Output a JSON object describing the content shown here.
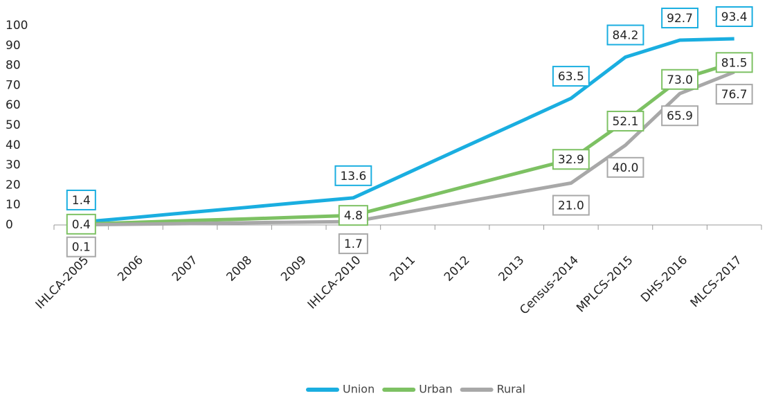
{
  "chart_data": {
    "type": "line",
    "categories": [
      "IHLCA-2005",
      "2006",
      "2007",
      "2008",
      "2009",
      "IHLCA-2010",
      "2011",
      "2012",
      "2013",
      "Census-2014",
      "MPLCS-2015",
      "DHS-2016",
      "MLCS-2017"
    ],
    "series": [
      {
        "name": "Union",
        "color": "#1aaee0",
        "values": [
          1.4,
          3.8,
          6.3,
          8.7,
          11.2,
          13.6,
          26.1,
          38.6,
          51.0,
          63.5,
          84.2,
          92.7,
          93.4
        ],
        "value_labels": [
          "1.4",
          null,
          null,
          null,
          null,
          "13.6",
          null,
          null,
          null,
          "63.5",
          "84.2",
          "92.7",
          "93.4"
        ]
      },
      {
        "name": "Urban",
        "color": "#7dc163",
        "values": [
          0.4,
          1.3,
          2.2,
          3.0,
          3.9,
          4.8,
          11.8,
          18.9,
          25.9,
          32.9,
          52.1,
          73.0,
          81.5
        ],
        "value_labels": [
          "0.4",
          null,
          null,
          null,
          null,
          "4.8",
          null,
          null,
          null,
          "32.9",
          "52.1",
          "73.0",
          "81.5"
        ]
      },
      {
        "name": "Rural",
        "color": "#a8a8a8",
        "values": [
          0.1,
          0.4,
          0.7,
          1.1,
          1.4,
          1.7,
          6.5,
          11.4,
          16.2,
          21.0,
          40.0,
          65.9,
          76.7
        ],
        "value_labels": [
          "0.1",
          null,
          null,
          null,
          null,
          "1.7",
          null,
          null,
          null,
          "21.0",
          "40.0",
          "65.9",
          "76.7"
        ]
      }
    ],
    "ylim": [
      0,
      100
    ],
    "yticks": [
      0,
      10,
      20,
      30,
      40,
      50,
      60,
      70,
      80,
      90,
      100
    ],
    "grid": false,
    "legend": "bottom"
  }
}
